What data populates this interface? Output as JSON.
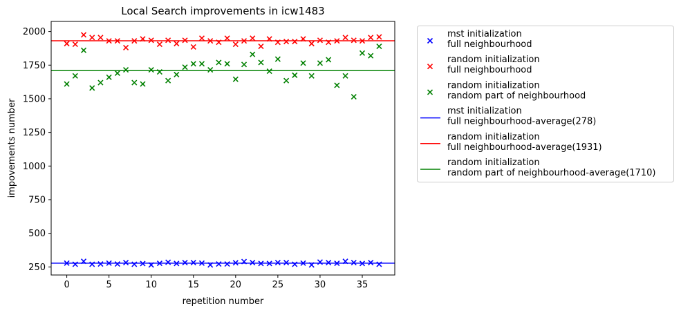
{
  "chart_data": {
    "type": "scatter",
    "title": "Local Search improvements in icw1483",
    "xlabel": "repetition number",
    "ylabel": "impovements number",
    "xlim": [
      -1.85,
      38.85
    ],
    "ylim": [
      190,
      2075
    ],
    "xticks": [
      0,
      5,
      10,
      15,
      20,
      25,
      30,
      35
    ],
    "yticks": [
      250,
      500,
      750,
      1000,
      1250,
      1500,
      1750,
      2000
    ],
    "grid": false,
    "legend_position": "outside-right",
    "x": [
      0,
      1,
      2,
      3,
      4,
      5,
      6,
      7,
      8,
      9,
      10,
      11,
      12,
      13,
      14,
      15,
      16,
      17,
      18,
      19,
      20,
      21,
      22,
      23,
      24,
      25,
      26,
      27,
      28,
      29,
      30,
      31,
      32,
      33,
      34,
      35,
      36,
      37
    ],
    "series": [
      {
        "name": "mst initialization\nfull neighbourhood",
        "marker": "x",
        "color": "#0000ff",
        "values": [
          278,
          270,
          292,
          270,
          272,
          278,
          272,
          282,
          270,
          275,
          265,
          277,
          285,
          276,
          282,
          282,
          278,
          265,
          272,
          272,
          281,
          290,
          282,
          276,
          276,
          282,
          282,
          270,
          278,
          265,
          286,
          282,
          277,
          292,
          282,
          276,
          282,
          270
        ]
      },
      {
        "name": "random initialization\nfull neighbourhood",
        "marker": "x",
        "color": "#ff0000",
        "values": [
          1910,
          1905,
          1975,
          1955,
          1955,
          1930,
          1930,
          1880,
          1930,
          1945,
          1935,
          1905,
          1935,
          1910,
          1935,
          1885,
          1950,
          1930,
          1920,
          1950,
          1905,
          1930,
          1950,
          1890,
          1945,
          1920,
          1925,
          1925,
          1945,
          1910,
          1935,
          1920,
          1930,
          1955,
          1935,
          1930,
          1955,
          1960
        ]
      },
      {
        "name": "random initialization\nrandom part of neighbourhood",
        "marker": "x",
        "color": "#008000",
        "values": [
          1610,
          1670,
          1860,
          1580,
          1620,
          1660,
          1690,
          1715,
          1620,
          1610,
          1715,
          1700,
          1635,
          1680,
          1735,
          1760,
          1760,
          1715,
          1770,
          1760,
          1645,
          1755,
          1830,
          1770,
          1705,
          1795,
          1635,
          1675,
          1765,
          1670,
          1765,
          1790,
          1600,
          1670,
          1515,
          1840,
          1820,
          1890
        ]
      }
    ],
    "hlines": [
      {
        "name": "mst initialization\nfull neighbourhood-average(278)",
        "value": 278,
        "color": "#0000ff"
      },
      {
        "name": "random initialization\nfull neighbourhood-average(1931)",
        "value": 1931,
        "color": "#ff0000"
      },
      {
        "name": "random initialization\nrandom part of neighbourhood-average(1710)",
        "value": 1710,
        "color": "#008000"
      }
    ]
  }
}
